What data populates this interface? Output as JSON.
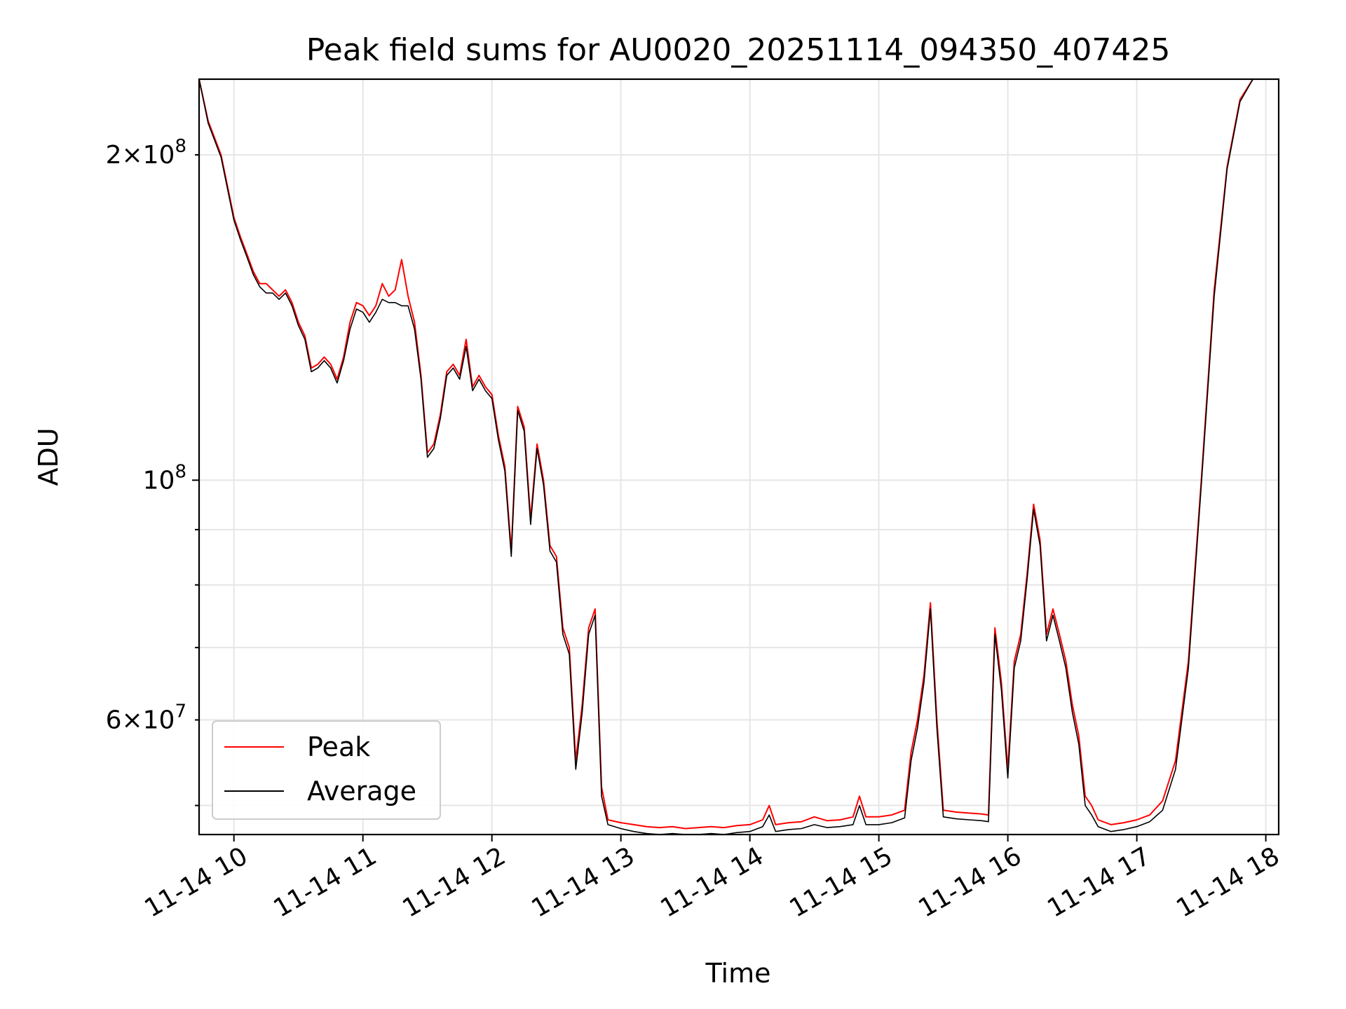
{
  "chart_data": {
    "type": "line",
    "title": "Peak field sums for AU0020_20251114_094350_407425",
    "xlabel": "Time",
    "ylabel": "ADU",
    "yscale": "log",
    "grid": true,
    "legend_position": "lower-left",
    "xlim": [
      9.73,
      18.1
    ],
    "ylim": [
      47000000,
      235000000
    ],
    "x_ticks": [
      {
        "value": 10,
        "label": "11-14 10"
      },
      {
        "value": 11,
        "label": "11-14 11"
      },
      {
        "value": 12,
        "label": "11-14 12"
      },
      {
        "value": 13,
        "label": "11-14 13"
      },
      {
        "value": 14,
        "label": "11-14 14"
      },
      {
        "value": 15,
        "label": "11-14 15"
      },
      {
        "value": 16,
        "label": "11-14 16"
      },
      {
        "value": 17,
        "label": "11-14 17"
      },
      {
        "value": 18,
        "label": "11-14 18"
      }
    ],
    "y_major_ticks": [
      {
        "value": 100000000,
        "mantissa": "",
        "base": "10",
        "exp": "8"
      }
    ],
    "y_minor_ticks": [
      {
        "value": 60000000,
        "mantissa": "6",
        "base": "10",
        "exp": "7"
      },
      {
        "value": 200000000,
        "mantissa": "2",
        "base": "10",
        "exp": "8"
      }
    ],
    "y_minor_unlabeled": [
      50000000,
      70000000,
      80000000,
      90000000
    ],
    "series": [
      {
        "name": "Peak",
        "color": "#ff0000",
        "x": [
          9.73,
          9.8,
          9.9,
          10.0,
          10.05,
          10.1,
          10.15,
          10.2,
          10.25,
          10.3,
          10.35,
          10.4,
          10.45,
          10.5,
          10.55,
          10.6,
          10.65,
          10.7,
          10.75,
          10.8,
          10.85,
          10.9,
          10.95,
          11.0,
          11.05,
          11.1,
          11.15,
          11.2,
          11.25,
          11.3,
          11.35,
          11.4,
          11.45,
          11.5,
          11.55,
          11.6,
          11.65,
          11.7,
          11.75,
          11.8,
          11.85,
          11.9,
          11.95,
          12.0,
          12.05,
          12.1,
          12.15,
          12.2,
          12.25,
          12.3,
          12.35,
          12.4,
          12.45,
          12.5,
          12.55,
          12.6,
          12.65,
          12.7,
          12.75,
          12.8,
          12.85,
          12.9,
          13.0,
          13.1,
          13.2,
          13.3,
          13.4,
          13.5,
          13.6,
          13.7,
          13.8,
          13.9,
          14.0,
          14.1,
          14.15,
          14.2,
          14.3,
          14.4,
          14.5,
          14.6,
          14.7,
          14.8,
          14.85,
          14.9,
          15.0,
          15.1,
          15.2,
          15.25,
          15.3,
          15.35,
          15.4,
          15.45,
          15.5,
          15.6,
          15.7,
          15.8,
          15.85,
          15.9,
          15.95,
          16.0,
          16.05,
          16.1,
          16.15,
          16.2,
          16.25,
          16.3,
          16.35,
          16.4,
          16.45,
          16.5,
          16.55,
          16.6,
          16.65,
          16.7,
          16.8,
          16.9,
          17.0,
          17.1,
          17.2,
          17.3,
          17.4,
          17.5,
          17.6,
          17.7,
          17.8,
          17.9,
          18.0
        ],
        "y": [
          235000000,
          215000000,
          200000000,
          175000000,
          168000000,
          162000000,
          156000000,
          152000000,
          152000000,
          150000000,
          148000000,
          150000000,
          146000000,
          140000000,
          136000000,
          127000000,
          128000000,
          130000000,
          128000000,
          124000000,
          130000000,
          140000000,
          146000000,
          145000000,
          142000000,
          145000000,
          152000000,
          148000000,
          150000000,
          160000000,
          148000000,
          140000000,
          125000000,
          106000000,
          108000000,
          115000000,
          126000000,
          128000000,
          125000000,
          135000000,
          122000000,
          125000000,
          122000000,
          120000000,
          110000000,
          103000000,
          86000000,
          117000000,
          112000000,
          92000000,
          108000000,
          100000000,
          87000000,
          85000000,
          73000000,
          70000000,
          55000000,
          62000000,
          73000000,
          76000000,
          52000000,
          48500000,
          48200000,
          48000000,
          47800000,
          47700000,
          47800000,
          47600000,
          47700000,
          47800000,
          47700000,
          47900000,
          48000000,
          48500000,
          50000000,
          48000000,
          48200000,
          48300000,
          48800000,
          48400000,
          48500000,
          48800000,
          51000000,
          48800000,
          48800000,
          49000000,
          49500000,
          56000000,
          60000000,
          66000000,
          77000000,
          60000000,
          49500000,
          49300000,
          49200000,
          49100000,
          49000000,
          73000000,
          65000000,
          54000000,
          68000000,
          72000000,
          82000000,
          95000000,
          88000000,
          72000000,
          76000000,
          72000000,
          68000000,
          62000000,
          58000000,
          51000000,
          50000000,
          48500000,
          48000000,
          48200000,
          48500000,
          49000000,
          50500000,
          55000000,
          68000000,
          100000000,
          150000000,
          195000000,
          225000000,
          235000000,
          235000000
        ]
      },
      {
        "name": "Average",
        "color": "#000000",
        "x": [
          9.73,
          9.8,
          9.9,
          10.0,
          10.05,
          10.1,
          10.15,
          10.2,
          10.25,
          10.3,
          10.35,
          10.4,
          10.45,
          10.5,
          10.55,
          10.6,
          10.65,
          10.7,
          10.75,
          10.8,
          10.85,
          10.9,
          10.95,
          11.0,
          11.05,
          11.1,
          11.15,
          11.2,
          11.25,
          11.3,
          11.35,
          11.4,
          11.45,
          11.5,
          11.55,
          11.6,
          11.65,
          11.7,
          11.75,
          11.8,
          11.85,
          11.9,
          11.95,
          12.0,
          12.05,
          12.1,
          12.15,
          12.2,
          12.25,
          12.3,
          12.35,
          12.4,
          12.45,
          12.5,
          12.55,
          12.6,
          12.65,
          12.7,
          12.75,
          12.8,
          12.85,
          12.9,
          13.0,
          13.1,
          13.2,
          13.3,
          13.4,
          13.5,
          13.6,
          13.7,
          13.8,
          13.9,
          14.0,
          14.1,
          14.15,
          14.2,
          14.3,
          14.4,
          14.5,
          14.6,
          14.7,
          14.8,
          14.85,
          14.9,
          15.0,
          15.1,
          15.2,
          15.25,
          15.3,
          15.35,
          15.4,
          15.45,
          15.5,
          15.6,
          15.7,
          15.8,
          15.85,
          15.9,
          15.95,
          16.0,
          16.05,
          16.1,
          16.15,
          16.2,
          16.25,
          16.3,
          16.35,
          16.4,
          16.45,
          16.5,
          16.55,
          16.6,
          16.65,
          16.7,
          16.8,
          16.9,
          17.0,
          17.1,
          17.2,
          17.3,
          17.4,
          17.5,
          17.6,
          17.7,
          17.8,
          17.9,
          18.0
        ],
        "y": [
          235000000,
          214000000,
          199000000,
          174000000,
          167000000,
          161000000,
          155000000,
          151000000,
          149000000,
          149000000,
          147000000,
          149000000,
          145000000,
          139000000,
          135000000,
          126000000,
          127000000,
          129000000,
          127000000,
          123000000,
          129000000,
          138000000,
          144000000,
          143000000,
          140000000,
          143000000,
          147000000,
          146000000,
          146000000,
          145000000,
          145000000,
          138000000,
          124000000,
          105000000,
          107000000,
          114000000,
          125000000,
          127000000,
          124000000,
          133000000,
          121000000,
          124000000,
          121000000,
          119000000,
          109000000,
          102000000,
          85000000,
          116000000,
          111000000,
          91000000,
          107000000,
          99000000,
          86000000,
          84000000,
          72000000,
          69000000,
          54000000,
          61000000,
          72000000,
          75000000,
          51000000,
          48000000,
          47600000,
          47300000,
          47100000,
          47000000,
          47100000,
          47000000,
          47000000,
          47100000,
          47000000,
          47200000,
          47300000,
          47800000,
          49000000,
          47300000,
          47500000,
          47600000,
          48000000,
          47700000,
          47800000,
          48000000,
          50000000,
          48000000,
          48000000,
          48200000,
          48700000,
          55000000,
          59000000,
          65000000,
          76000000,
          59000000,
          48800000,
          48600000,
          48500000,
          48400000,
          48300000,
          72000000,
          64000000,
          53000000,
          67000000,
          71000000,
          81000000,
          94000000,
          87000000,
          71000000,
          75000000,
          71000000,
          67000000,
          61000000,
          57000000,
          50000000,
          49000000,
          47800000,
          47300000,
          47500000,
          47800000,
          48300000,
          49500000,
          54000000,
          67000000,
          99000000,
          148000000,
          194000000,
          224000000,
          235000000,
          235000000
        ]
      }
    ]
  }
}
